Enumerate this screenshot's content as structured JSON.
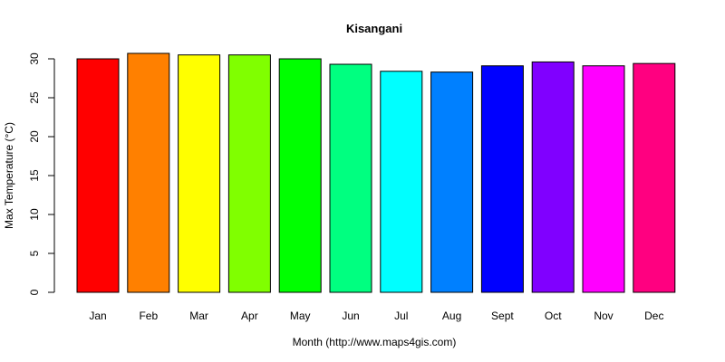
{
  "chart_data": {
    "type": "bar",
    "title": "Kisangani",
    "xlabel": "Month (http://www.maps4gis.com)",
    "ylabel": "Max Temperature (°C)",
    "ylim": [
      0,
      30
    ],
    "yticks": [
      0,
      5,
      10,
      15,
      20,
      25,
      30
    ],
    "categories": [
      "Jan",
      "Feb",
      "Mar",
      "Apr",
      "May",
      "Jun",
      "Jul",
      "Aug",
      "Sept",
      "Oct",
      "Nov",
      "Dec"
    ],
    "values": [
      30.0,
      30.7,
      30.5,
      30.5,
      30.0,
      29.3,
      28.4,
      28.3,
      29.1,
      29.6,
      29.1,
      29.4
    ],
    "colors": [
      "#FF0000",
      "#FF8000",
      "#FFFF00",
      "#80FF00",
      "#00FF00",
      "#00FF80",
      "#00FFFF",
      "#0080FF",
      "#0000FF",
      "#8000FF",
      "#FF00FF",
      "#FF0080"
    ],
    "grid": false,
    "legend": "none"
  }
}
